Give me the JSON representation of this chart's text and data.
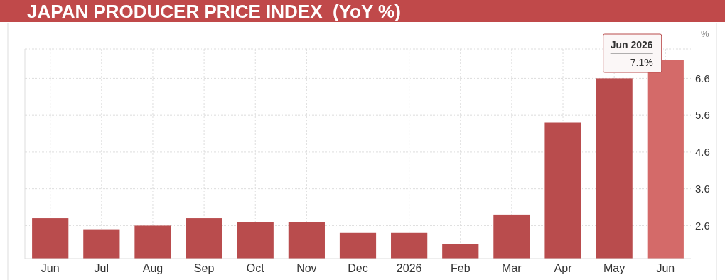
{
  "chart_data": {
    "type": "bar",
    "title": "JAPAN PRODUCER PRICE INDEX  (YoY %)",
    "ylabel": "%",
    "categories": [
      "Jun",
      "Jul",
      "Aug",
      "Sep",
      "Oct",
      "Nov",
      "Dec",
      "2026",
      "Feb",
      "Mar",
      "Apr",
      "May",
      "Jun"
    ],
    "values": [
      2.8,
      2.5,
      2.6,
      2.8,
      2.7,
      2.7,
      2.4,
      2.4,
      2.1,
      2.9,
      5.4,
      6.6,
      7.1
    ],
    "colors": [
      "#b94c4d",
      "#b94c4d",
      "#b94c4d",
      "#b94c4d",
      "#b94c4d",
      "#b94c4d",
      "#b94c4d",
      "#b94c4d",
      "#b94c4d",
      "#b94c4d",
      "#b94c4d",
      "#b94c4d",
      "#d46a69"
    ],
    "value_labels": [
      null,
      null,
      null,
      null,
      null,
      null,
      null,
      null,
      null,
      null,
      null,
      null,
      "7.1%"
    ],
    "annotations": [
      "Jun 2026"
    ],
    "ylim": [
      1.7,
      7.4
    ],
    "yticks": [
      2.6,
      3.6,
      4.6,
      5.6,
      6.6
    ],
    "grid": true
  }
}
